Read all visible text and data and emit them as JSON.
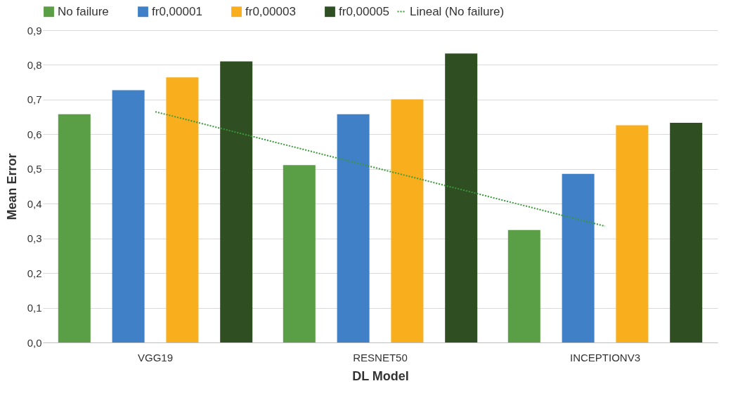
{
  "chart_data": {
    "type": "bar",
    "xlabel": "DL Model",
    "ylabel": "Mean Error",
    "categories": [
      "VGG19",
      "RESNET50",
      "INCEPTIONV3"
    ],
    "series": [
      {
        "name": "No failure",
        "color": "#5a9e45",
        "values": [
          0.658,
          0.511,
          0.324
        ]
      },
      {
        "name": "fr0,00001",
        "color": "#3f80c6",
        "values": [
          0.727,
          0.658,
          0.486
        ]
      },
      {
        "name": "fr0,00003",
        "color": "#f9ae1e",
        "values": [
          0.764,
          0.701,
          0.626
        ]
      },
      {
        "name": "fr0,00005",
        "color": "#2f4f22",
        "values": [
          0.81,
          0.833,
          0.633
        ]
      },
      {
        "name": "Lineal (No failure)",
        "type": "line",
        "color": "#3a9a3a",
        "line_style": "dotted",
        "x": [
          "VGG19",
          "RESNET50",
          "INCEPTIONV3"
        ],
        "values": [
          0.665,
          0.5,
          0.335
        ]
      }
    ],
    "ylim": [
      0,
      0.9
    ],
    "yticks": [
      {
        "value": 0,
        "label": "0,0"
      },
      {
        "value": 0.1,
        "label": "0,1"
      },
      {
        "value": 0.2,
        "label": "0,2"
      },
      {
        "value": 0.3,
        "label": "0,3"
      },
      {
        "value": 0.4,
        "label": "0,4"
      },
      {
        "value": 0.5,
        "label": "0,5"
      },
      {
        "value": 0.6,
        "label": "0,6"
      },
      {
        "value": 0.7,
        "label": "0,7"
      },
      {
        "value": 0.8,
        "label": "0,8"
      },
      {
        "value": 0.9,
        "label": "0,9"
      }
    ],
    "grid": "y",
    "legend": "top"
  }
}
